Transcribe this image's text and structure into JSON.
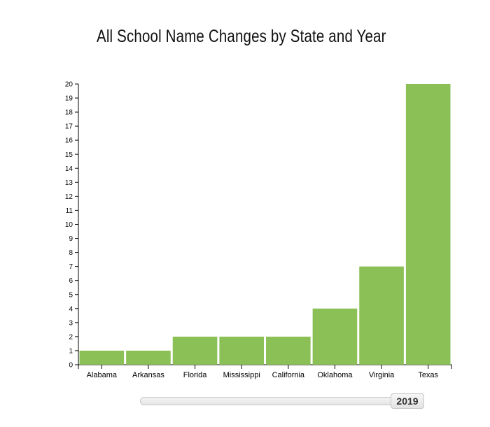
{
  "title": "All School Name Changes by State and Year",
  "slider": {
    "year": "2019"
  },
  "colors": {
    "bar": "#8bc057",
    "axis": "#000000"
  },
  "chart_data": {
    "type": "bar",
    "title": "All School Name Changes by State and Year",
    "xlabel": "",
    "ylabel": "",
    "categories": [
      "Alabama",
      "Arkansas",
      "Florida",
      "Mississippi",
      "California",
      "Oklahoma",
      "Virginia",
      "Texas"
    ],
    "values": [
      1,
      1,
      2,
      2,
      2,
      4,
      7,
      20
    ],
    "ylim": [
      0,
      20
    ],
    "yticks": [
      0,
      1,
      2,
      3,
      4,
      5,
      6,
      7,
      8,
      9,
      10,
      11,
      12,
      13,
      14,
      15,
      16,
      17,
      18,
      19,
      20
    ],
    "grid": false,
    "legend": "none"
  }
}
